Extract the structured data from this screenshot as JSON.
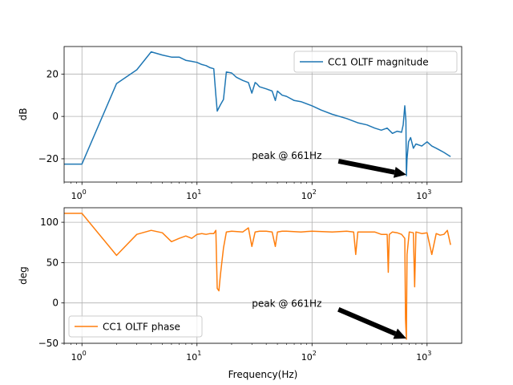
{
  "chart_data": [
    {
      "type": "line",
      "xscale": "log",
      "xlim": [
        0.7,
        2000
      ],
      "ylim": [
        -31,
        33
      ],
      "ylabel": "dB",
      "xlabel": "",
      "grid": true,
      "legend": {
        "position": "upper right"
      },
      "series": [
        {
          "name": "CC1 OLTF magnitude",
          "color": "#1f77b4",
          "x": [
            0.7,
            1.0,
            2.0,
            3.0,
            4.0,
            5.0,
            6.0,
            7.0,
            8.0,
            9.0,
            10.0,
            11.0,
            12.0,
            13.0,
            14.0,
            14.6,
            15.0,
            16.0,
            17.0,
            18.0,
            20.0,
            22.0,
            25.0,
            28.0,
            30.0,
            32.0,
            33.0,
            35.0,
            40.0,
            45.0,
            48.0,
            50.0,
            55.0,
            60.0,
            70.0,
            80.0,
            100.0,
            120.0,
            150.0,
            200.0,
            250.0,
            300.0,
            350.0,
            400.0,
            450.0,
            500.0,
            550.0,
            600.0,
            620.0,
            640.0,
            655.0,
            661.0,
            670.0,
            690.0,
            720.0,
            760.0,
            800.0,
            900.0,
            1000.0,
            1100.0,
            1200.0,
            1300.0,
            1400.0,
            1500.0,
            1600.0
          ],
          "y": [
            -22.5,
            -22.5,
            15.5,
            22.0,
            30.5,
            29.0,
            28.0,
            28.0,
            26.5,
            26.0,
            25.5,
            24.5,
            24.0,
            23.0,
            22.5,
            10.0,
            2.5,
            5.5,
            8.0,
            21.0,
            20.5,
            18.5,
            17.0,
            16.0,
            11.0,
            16.0,
            15.5,
            14.0,
            13.0,
            12.0,
            7.5,
            12.0,
            10.0,
            9.5,
            7.5,
            7.0,
            5.0,
            3.0,
            1.0,
            -1.0,
            -3.0,
            -4.0,
            -5.5,
            -6.5,
            -5.5,
            -8.0,
            -7.0,
            -7.5,
            -4.0,
            5.0,
            -2.0,
            -28.0,
            -20.0,
            -12.0,
            -10.0,
            -15.0,
            -13.0,
            -14.0,
            -12.0,
            -14.0,
            -15.0,
            -16.0,
            -17.0,
            -18.0,
            -19.0
          ]
        }
      ],
      "annotation": {
        "text": "peak @ 661Hz",
        "xy": [
          661,
          -27.5
        ],
        "xytext": [
          30,
          -18.5
        ]
      }
    },
    {
      "type": "line",
      "xscale": "log",
      "xlim": [
        0.7,
        2000
      ],
      "ylim": [
        -50,
        118
      ],
      "ylabel": "deg",
      "xlabel": "Frequency(Hz)",
      "grid": true,
      "legend": {
        "position": "lower left"
      },
      "series": [
        {
          "name": "CC1 OLTF phase",
          "color": "#ff7f0e",
          "x": [
            0.7,
            1.0,
            2.0,
            3.0,
            4.0,
            5.0,
            6.0,
            7.0,
            8.0,
            9.0,
            10.0,
            11.0,
            12.0,
            13.0,
            14.0,
            14.6,
            15.0,
            15.5,
            16.0,
            17.0,
            18.0,
            20.0,
            25.0,
            28.0,
            30.0,
            32.0,
            35.0,
            40.0,
            45.0,
            48.0,
            50.0,
            55.0,
            60.0,
            80.0,
            100.0,
            150.0,
            200.0,
            230.0,
            240.0,
            250.0,
            300.0,
            350.0,
            400.0,
            450.0,
            460.0,
            470.0,
            500.0,
            550.0,
            600.0,
            640.0,
            650.0,
            661.0,
            670.0,
            700.0,
            760.0,
            780.0,
            800.0,
            900.0,
            1000.0,
            1100.0,
            1200.0,
            1300.0,
            1400.0,
            1500.0,
            1600.0
          ],
          "y": [
            111,
            111,
            59,
            85,
            90,
            87,
            76,
            80,
            83,
            80,
            85,
            86,
            85,
            86,
            86,
            90,
            18,
            15,
            35,
            68,
            88,
            89,
            88,
            93,
            70,
            88,
            89,
            89,
            88,
            70,
            88,
            89,
            89,
            88,
            89,
            88,
            89,
            88,
            60,
            88,
            88,
            88,
            85,
            85,
            38,
            85,
            88,
            87,
            85,
            80,
            -20,
            -45,
            60,
            88,
            87,
            20,
            88,
            86,
            87,
            60,
            86,
            84,
            85,
            90,
            72
          ]
        }
      ],
      "annotation": {
        "text": "peak @ 661Hz",
        "xy": [
          661,
          -44
        ],
        "xytext": [
          30,
          -1
        ]
      }
    }
  ]
}
